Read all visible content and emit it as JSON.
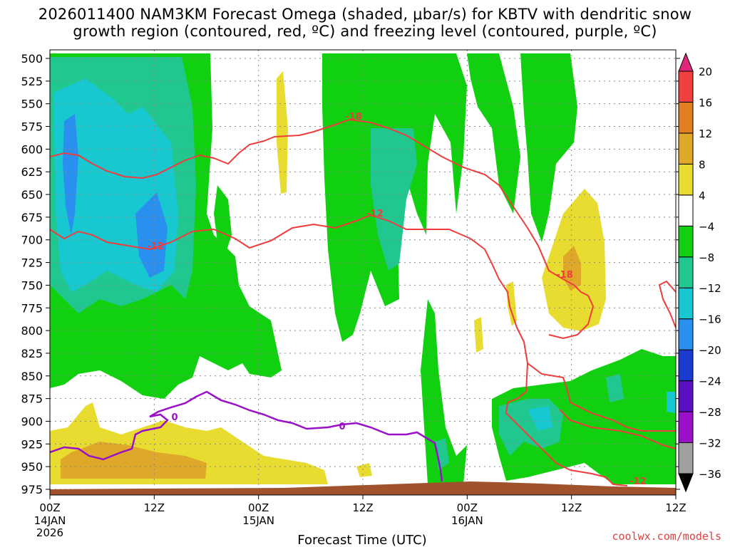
{
  "title_line1": "2026011400 NAM3KM Forecast Omega (shaded, μbar/s) for KBTV with dendritic snow",
  "title_line2": "growth region (contoured, red, ºC) and freezing level (contoured, purple, ºC)",
  "credit": "coolwx.com/models",
  "colors": {
    "dgz_contour": "#f03c3c",
    "freezing_contour": "#9a10c8",
    "terrain": "#a0522d",
    "grid": "#888888"
  },
  "chart_data": {
    "type": "heatmap",
    "title": "2026011400 NAM3KM Forecast Omega (shaded, μbar/s) for KBTV with dendritic snow growth region (contoured, red, ºC) and freezing level (contoured, purple, ºC)",
    "xlabel": "Forecast Time (UTC)",
    "ylabel": "",
    "x_range_hours": [
      0,
      72
    ],
    "y_range_hpa": [
      500,
      985
    ],
    "y_ticks": [
      500,
      525,
      550,
      575,
      600,
      625,
      650,
      675,
      700,
      725,
      750,
      775,
      800,
      825,
      850,
      875,
      900,
      925,
      950,
      975
    ],
    "x_ticks": [
      {
        "hour": 0,
        "label": "00Z",
        "date": "14JAN",
        "year": "2026"
      },
      {
        "hour": 12,
        "label": "12Z",
        "date": "",
        "year": ""
      },
      {
        "hour": 24,
        "label": "00Z",
        "date": "15JAN",
        "year": ""
      },
      {
        "hour": 36,
        "label": "12Z",
        "date": "",
        "year": ""
      },
      {
        "hour": 48,
        "label": "00Z",
        "date": "16JAN",
        "year": ""
      },
      {
        "hour": 60,
        "label": "12Z",
        "date": "",
        "year": ""
      }
    ],
    "grid": true,
    "colorbar": {
      "levels": [
        -36,
        -32,
        -28,
        -24,
        -20,
        -16,
        -12,
        -8,
        -4,
        4,
        8,
        12,
        16,
        20
      ],
      "labels": [
        "20",
        "16",
        "12",
        "8",
        "4",
        "−4",
        "−8",
        "−12",
        "−16",
        "−20",
        "−24",
        "−28",
        "−32",
        "−36"
      ],
      "colors": [
        "#000000",
        "#a0a0a0",
        "#9a10c8",
        "#5a10c0",
        "#1a3ad0",
        "#2a90f0",
        "#18c8d0",
        "#20c890",
        "#10d010",
        "#ffffff",
        "#e8dc30",
        "#e0a828",
        "#e08020",
        "#f04040",
        "#e0287a"
      ]
    },
    "contour_labels": [
      {
        "text": "-18",
        "color": "dgz"
      },
      {
        "text": "-12",
        "color": "dgz"
      },
      {
        "text": "-12",
        "color": "dgz"
      },
      {
        "text": "-18",
        "color": "dgz"
      },
      {
        "text": "-12",
        "color": "dgz"
      },
      {
        "text": "0",
        "color": "freezing"
      },
      {
        "text": "0",
        "color": "freezing"
      }
    ]
  }
}
